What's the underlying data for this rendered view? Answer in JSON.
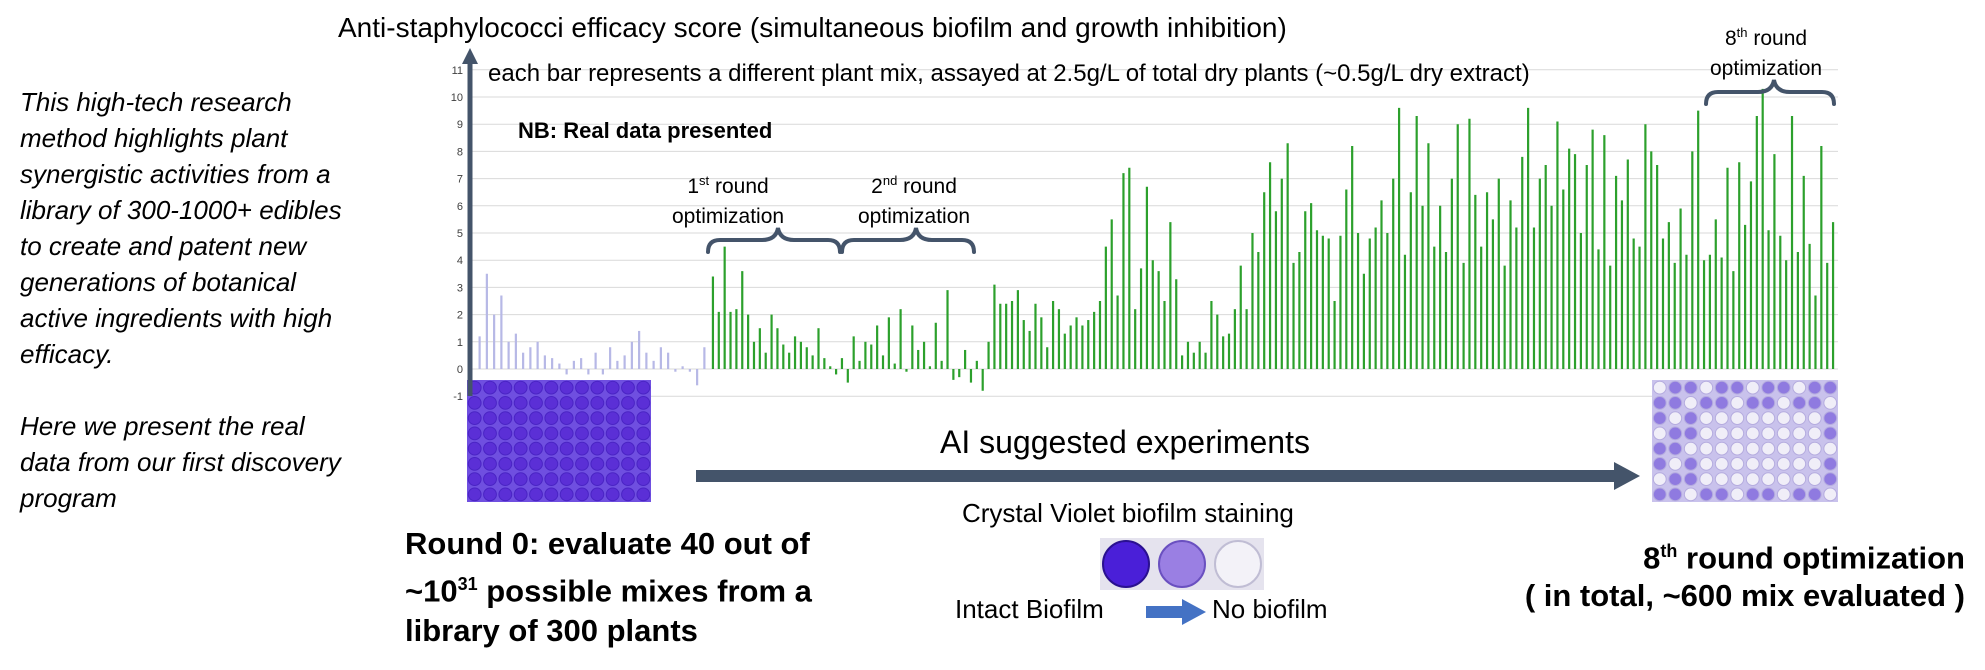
{
  "side_text": {
    "paragraph1": "This high-tech research method highlights plant synergistic activities from a library of 300-1000+ edibles to create and patent new generations of botanical active ingredients with high efficacy.",
    "paragraph2": "Here we present the real data from our first discovery program"
  },
  "header": {
    "title": "Anti-staphylococci efficacy score (simultaneous biofilm and growth inhibition)"
  },
  "annotations": {
    "subtitle": "each bar represents a different plant mix, assayed at 2.5g/L of total dry plants (~0.5g/L dry extract)",
    "nb": "NB: Real data presented",
    "round1_num": "1",
    "round1_sup": "st",
    "round1_word": " round",
    "round1_line2": "optimization",
    "round2_num": "2",
    "round2_sup": "nd",
    "round2_word": " round",
    "round2_line2": "optimization",
    "round8_num": "8",
    "round8_sup": "th",
    "round8_word": " round",
    "round8_line2": "optimization",
    "ai_text": "AI suggested experiments"
  },
  "bottom": {
    "round0_line1": "Round 0: evaluate 40 out of",
    "round0_line2_pre": "~10",
    "round0_line2_sup": "31",
    "round0_line2_post": " possible mixes  from a",
    "round0_line3": "library of 300 plants",
    "round8_num": "8",
    "round8_sup": "th",
    "round8_line1_post": " round optimization",
    "round8_line2": "( in total, ~600 mix evaluated )"
  },
  "crystal_violet": {
    "title": "Crystal Violet biofilm staining",
    "left_label": "Intact Biofilm",
    "right_label": "No biofilm"
  },
  "colors": {
    "round0_bars": "#b7b8e6",
    "optimized_bars": "#2ca02c",
    "arrow": "#44546a",
    "well_dark": "#5b2fd6",
    "grid": "#d9d9d9"
  },
  "chart_data": {
    "type": "bar",
    "title": "Anti-staphylococci efficacy score (simultaneous biofilm and growth inhibition)",
    "xlabel": "",
    "ylabel": "",
    "ylim": [
      -1,
      11
    ],
    "yticks": [
      "-1",
      "0",
      "1",
      "2",
      "3",
      "4",
      "5",
      "6",
      "7",
      "8",
      "9",
      "10",
      "11"
    ],
    "grid": true,
    "series": [
      {
        "values": [
          1.2,
          3.5,
          2.0,
          2.7,
          1.0,
          1.3,
          0.6,
          0.8,
          1.0,
          0.5,
          0.4,
          0.2,
          -0.2,
          0.3,
          0.4,
          -0.2,
          0.6,
          -0.2,
          0.8,
          0.3,
          0.5,
          1.0,
          1.4,
          0.6,
          0.3,
          0.8,
          0.6,
          -0.1,
          0.1,
          -0.1,
          -0.6,
          0.8
        ]
      },
      {
        "values": [
          3.4,
          2.1,
          4.5,
          2.1,
          2.2,
          3.6,
          2.0,
          1.0,
          1.5,
          0.6,
          2.0,
          1.5,
          0.9,
          0.6,
          1.2,
          1.0,
          0.8,
          0.5,
          1.5,
          0.4,
          0.1,
          -0.2,
          0.4,
          -0.5,
          1.2,
          0.3,
          1.0,
          0.9,
          1.6,
          0.5,
          1.9,
          0.2,
          2.2,
          -0.1,
          1.6,
          0.7,
          1.0,
          0.1,
          1.7,
          0.3,
          2.9,
          -0.4,
          -0.3,
          0.7,
          -0.5,
          0.3,
          -0.8,
          1.0,
          3.1,
          2.4,
          2.4,
          2.5,
          2.9,
          1.8,
          1.4,
          2.4,
          1.9,
          0.8,
          2.5,
          2.2,
          1.3,
          1.6,
          1.9,
          1.6,
          1.8,
          2.1,
          2.5,
          4.5,
          5.5,
          2.7,
          7.2,
          7.4,
          2.2,
          3.7,
          6.7,
          4.0,
          3.6,
          2.5,
          5.4,
          3.3,
          0.5,
          1.0,
          0.6,
          1.0,
          0.6,
          2.5,
          2.0,
          1.2,
          1.3,
          2.2,
          3.8,
          2.2,
          5.0,
          4.3,
          6.5,
          7.6,
          5.8,
          7.0,
          8.3,
          3.9,
          4.3,
          5.8,
          6.1,
          5.1,
          4.9,
          4.8,
          2.5,
          4.9,
          6.6,
          8.2,
          5.0,
          3.5,
          4.8,
          5.2,
          6.2,
          5.0,
          7.0,
          9.6,
          4.2,
          6.5,
          9.3,
          6.0,
          8.3,
          4.5,
          6.0,
          4.3,
          7.0,
          9.0,
          3.9,
          9.2,
          6.4,
          4.5,
          6.5,
          5.5,
          7.0,
          3.8,
          6.2,
          5.2,
          7.8,
          9.6,
          5.2,
          7.0,
          7.5,
          6.0,
          9.1,
          6.6,
          8.1,
          7.9,
          5.0,
          7.5,
          8.8,
          4.4,
          8.6,
          3.8,
          7.1,
          6.2,
          7.7,
          4.8,
          4.5,
          9.0,
          8.0,
          7.5,
          4.8,
          5.4,
          3.9,
          5.9,
          4.2,
          8.0,
          9.5,
          4.0,
          4.2,
          5.5,
          4.1,
          7.4,
          3.6,
          7.6,
          5.3,
          6.9,
          9.3,
          10.3,
          5.1,
          7.9,
          4.9,
          4.0,
          9.3,
          4.3,
          7.1,
          4.6,
          2.7,
          8.2,
          3.9,
          5.4
        ]
      }
    ]
  }
}
